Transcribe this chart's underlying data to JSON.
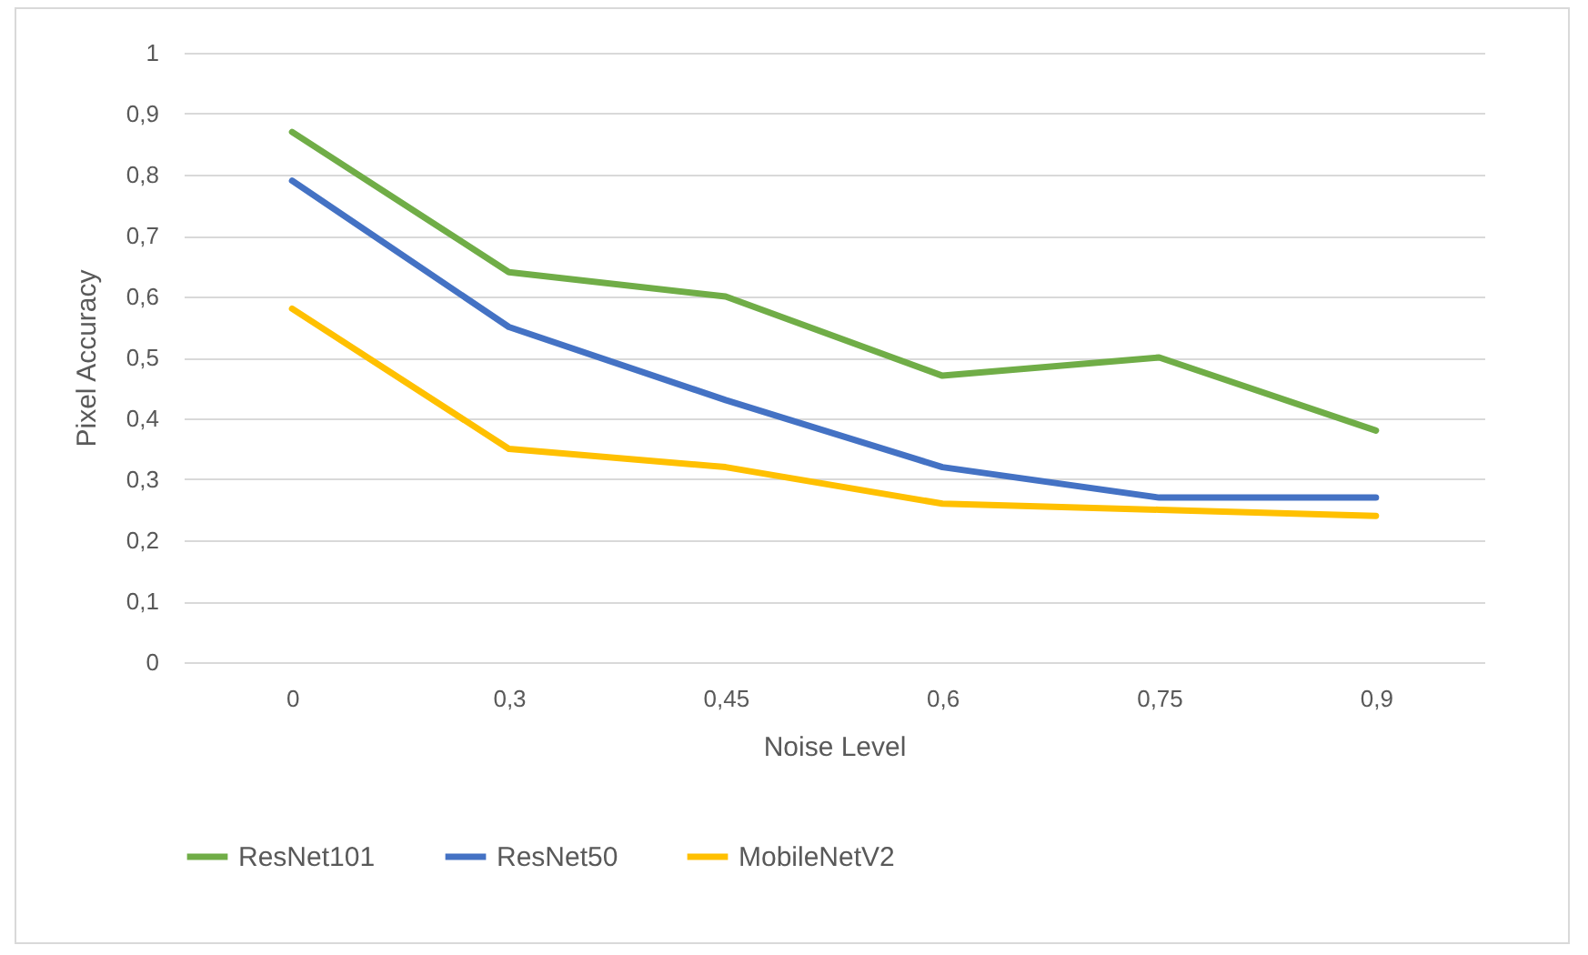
{
  "chart_data": {
    "type": "line",
    "xlabel": "Noise Level",
    "ylabel": "Pixel Accuracy",
    "categories": [
      "0",
      "0,3",
      "0,45",
      "0,6",
      "0,75",
      "0,9"
    ],
    "series": [
      {
        "name": "ResNet101",
        "color": "#70ad47",
        "values": [
          0.87,
          0.64,
          0.6,
          0.47,
          0.5,
          0.38
        ]
      },
      {
        "name": "ResNet50",
        "color": "#4472c4",
        "values": [
          0.79,
          0.55,
          0.43,
          0.32,
          0.27,
          0.27
        ]
      },
      {
        "name": "MobileNetV2",
        "color": "#ffc000",
        "values": [
          0.58,
          0.35,
          0.32,
          0.26,
          0.25,
          0.24
        ]
      }
    ],
    "ylim": [
      0,
      1
    ],
    "yticks": [
      0,
      {
        "value": 0.1,
        "label": "0,1"
      },
      {
        "value": 0.2,
        "label": "0,2"
      },
      {
        "value": 0.3,
        "label": "0,3"
      },
      {
        "value": 0.4,
        "label": "0,4"
      },
      {
        "value": 0.5,
        "label": "0,5"
      },
      {
        "value": 0.6,
        "label": "0,6"
      },
      {
        "value": 0.7,
        "label": "0,7"
      },
      {
        "value": 0.8,
        "label": "0,8"
      },
      {
        "value": 0.9,
        "label": "0,9"
      },
      1
    ],
    "grid": "y",
    "legend": "bottom",
    "marker": "none",
    "line_style": "solid"
  }
}
